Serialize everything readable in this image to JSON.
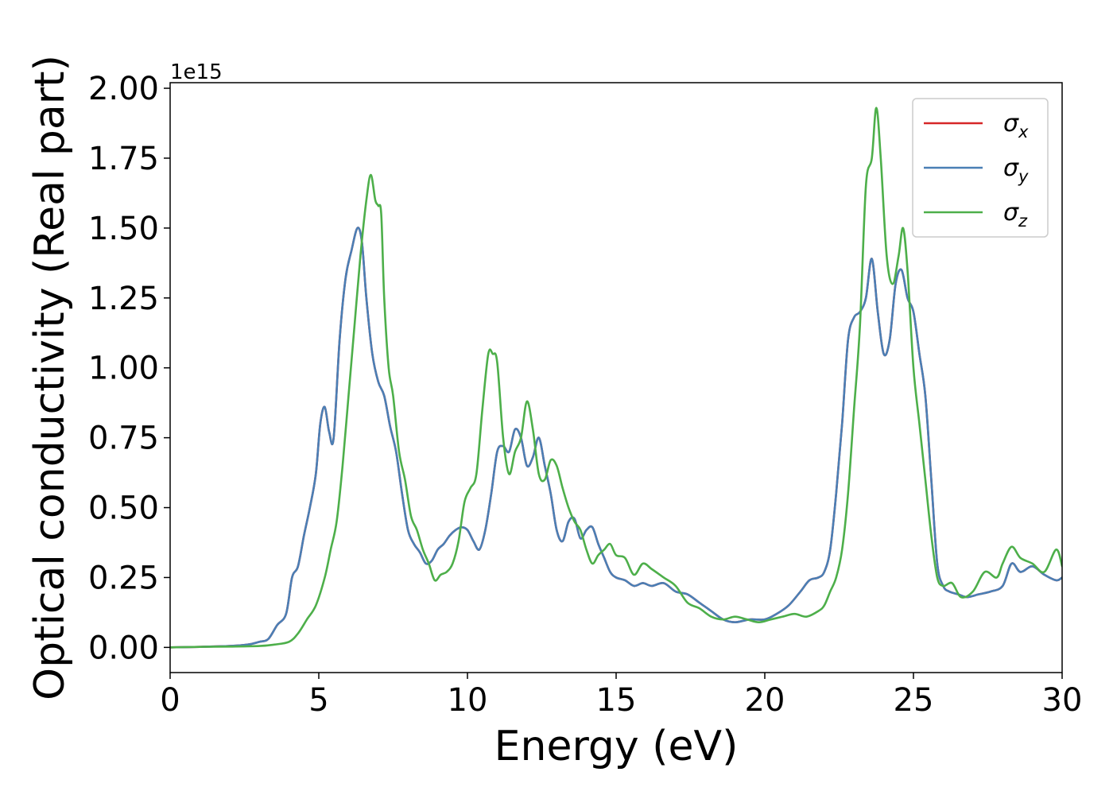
{
  "chart_data": {
    "type": "line",
    "xlabel": "Energy (eV)",
    "ylabel": "Optical conductivity (Real part)",
    "y_offset_label": "1e15",
    "y_scale_factor": 1000000000000000.0,
    "xlim": [
      0,
      30
    ],
    "ylim": [
      -0.09,
      2.02
    ],
    "x_ticks": [
      0,
      5,
      10,
      15,
      20,
      25,
      30
    ],
    "x_tick_labels": [
      "0",
      "5",
      "10",
      "15",
      "20",
      "25",
      "30"
    ],
    "y_ticks": [
      0.0,
      0.25,
      0.5,
      0.75,
      1.0,
      1.25,
      1.5,
      1.75,
      2.0
    ],
    "y_tick_labels": [
      "0.00",
      "0.25",
      "0.50",
      "0.75",
      "1.00",
      "1.25",
      "1.50",
      "1.75",
      "2.00"
    ],
    "grid": false,
    "legend_position": "top-right",
    "series": [
      {
        "name": "σx",
        "legend_symbol": "σ",
        "legend_subscript": "x",
        "color": "#d62728",
        "x": [
          0,
          1,
          2,
          2.6,
          3,
          3.3,
          3.6,
          3.9,
          4.1,
          4.3,
          4.5,
          4.7,
          4.9,
          5.05,
          5.2,
          5.35,
          5.5,
          5.7,
          5.9,
          6.1,
          6.3,
          6.45,
          6.6,
          6.8,
          7.0,
          7.2,
          7.4,
          7.6,
          7.8,
          8.0,
          8.2,
          8.4,
          8.6,
          8.8,
          9.0,
          9.2,
          9.4,
          9.6,
          9.8,
          10.0,
          10.2,
          10.4,
          10.6,
          10.8,
          11.0,
          11.2,
          11.4,
          11.6,
          11.8,
          12.0,
          12.2,
          12.4,
          12.6,
          12.8,
          13.0,
          13.2,
          13.4,
          13.6,
          13.8,
          14.0,
          14.2,
          14.4,
          14.6,
          14.8,
          15.0,
          15.3,
          15.6,
          15.9,
          16.2,
          16.6,
          17.0,
          17.4,
          17.8,
          18.2,
          18.6,
          19.0,
          19.5,
          20.0,
          20.4,
          20.8,
          21.2,
          21.5,
          21.8,
          22.0,
          22.2,
          22.4,
          22.6,
          22.8,
          23.0,
          23.2,
          23.4,
          23.6,
          23.8,
          24.0,
          24.2,
          24.4,
          24.6,
          24.8,
          25.0,
          25.2,
          25.4,
          25.6,
          25.8,
          26.0,
          26.2,
          26.5,
          26.8,
          27.2,
          27.6,
          28.0,
          28.3,
          28.6,
          29.0,
          29.4,
          29.8,
          30.0
        ],
        "values": [
          0,
          0.002,
          0.005,
          0.01,
          0.02,
          0.03,
          0.08,
          0.12,
          0.25,
          0.29,
          0.4,
          0.5,
          0.62,
          0.8,
          0.86,
          0.77,
          0.75,
          1.1,
          1.32,
          1.42,
          1.5,
          1.45,
          1.25,
          1.05,
          0.95,
          0.9,
          0.79,
          0.7,
          0.55,
          0.42,
          0.37,
          0.34,
          0.3,
          0.31,
          0.35,
          0.37,
          0.4,
          0.42,
          0.43,
          0.42,
          0.38,
          0.35,
          0.42,
          0.55,
          0.7,
          0.72,
          0.7,
          0.78,
          0.75,
          0.65,
          0.68,
          0.75,
          0.65,
          0.55,
          0.42,
          0.38,
          0.45,
          0.46,
          0.39,
          0.42,
          0.43,
          0.37,
          0.32,
          0.27,
          0.25,
          0.24,
          0.22,
          0.23,
          0.22,
          0.23,
          0.2,
          0.19,
          0.16,
          0.13,
          0.1,
          0.09,
          0.1,
          0.1,
          0.12,
          0.15,
          0.2,
          0.24,
          0.25,
          0.27,
          0.35,
          0.55,
          0.8,
          1.1,
          1.18,
          1.2,
          1.25,
          1.39,
          1.2,
          1.05,
          1.1,
          1.3,
          1.35,
          1.25,
          1.2,
          1.05,
          0.9,
          0.6,
          0.3,
          0.22,
          0.2,
          0.19,
          0.18,
          0.19,
          0.2,
          0.22,
          0.3,
          0.27,
          0.29,
          0.26,
          0.24,
          0.25
        ]
      },
      {
        "name": "σy",
        "legend_symbol": "σ",
        "legend_subscript": "y",
        "color": "#4a7fb5",
        "x": [
          0,
          1,
          2,
          2.6,
          3,
          3.3,
          3.6,
          3.9,
          4.1,
          4.3,
          4.5,
          4.7,
          4.9,
          5.05,
          5.2,
          5.35,
          5.5,
          5.7,
          5.9,
          6.1,
          6.3,
          6.45,
          6.6,
          6.8,
          7.0,
          7.2,
          7.4,
          7.6,
          7.8,
          8.0,
          8.2,
          8.4,
          8.6,
          8.8,
          9.0,
          9.2,
          9.4,
          9.6,
          9.8,
          10.0,
          10.2,
          10.4,
          10.6,
          10.8,
          11.0,
          11.2,
          11.4,
          11.6,
          11.8,
          12.0,
          12.2,
          12.4,
          12.6,
          12.8,
          13.0,
          13.2,
          13.4,
          13.6,
          13.8,
          14.0,
          14.2,
          14.4,
          14.6,
          14.8,
          15.0,
          15.3,
          15.6,
          15.9,
          16.2,
          16.6,
          17.0,
          17.4,
          17.8,
          18.2,
          18.6,
          19.0,
          19.5,
          20.0,
          20.4,
          20.8,
          21.2,
          21.5,
          21.8,
          22.0,
          22.2,
          22.4,
          22.6,
          22.8,
          23.0,
          23.2,
          23.4,
          23.6,
          23.8,
          24.0,
          24.2,
          24.4,
          24.6,
          24.8,
          25.0,
          25.2,
          25.4,
          25.6,
          25.8,
          26.0,
          26.2,
          26.5,
          26.8,
          27.2,
          27.6,
          28.0,
          28.3,
          28.6,
          29.0,
          29.4,
          29.8,
          30.0
        ],
        "values": [
          0,
          0.002,
          0.005,
          0.01,
          0.02,
          0.03,
          0.08,
          0.12,
          0.25,
          0.29,
          0.4,
          0.5,
          0.62,
          0.8,
          0.86,
          0.77,
          0.75,
          1.1,
          1.32,
          1.42,
          1.5,
          1.45,
          1.25,
          1.05,
          0.95,
          0.9,
          0.79,
          0.7,
          0.55,
          0.42,
          0.37,
          0.34,
          0.3,
          0.31,
          0.35,
          0.37,
          0.4,
          0.42,
          0.43,
          0.42,
          0.38,
          0.35,
          0.42,
          0.55,
          0.7,
          0.72,
          0.7,
          0.78,
          0.75,
          0.65,
          0.68,
          0.75,
          0.65,
          0.55,
          0.42,
          0.38,
          0.45,
          0.46,
          0.39,
          0.42,
          0.43,
          0.37,
          0.32,
          0.27,
          0.25,
          0.24,
          0.22,
          0.23,
          0.22,
          0.23,
          0.2,
          0.19,
          0.16,
          0.13,
          0.1,
          0.09,
          0.1,
          0.1,
          0.12,
          0.15,
          0.2,
          0.24,
          0.25,
          0.27,
          0.35,
          0.55,
          0.8,
          1.1,
          1.18,
          1.2,
          1.25,
          1.39,
          1.2,
          1.05,
          1.1,
          1.3,
          1.35,
          1.25,
          1.2,
          1.05,
          0.9,
          0.6,
          0.3,
          0.22,
          0.2,
          0.19,
          0.18,
          0.19,
          0.2,
          0.22,
          0.3,
          0.27,
          0.29,
          0.26,
          0.24,
          0.25
        ]
      },
      {
        "name": "σz",
        "legend_symbol": "σ",
        "legend_subscript": "z",
        "color": "#4daf4a",
        "x": [
          0,
          1,
          2,
          3,
          3.5,
          4.0,
          4.3,
          4.6,
          4.9,
          5.2,
          5.4,
          5.6,
          5.8,
          6.0,
          6.2,
          6.4,
          6.6,
          6.75,
          6.9,
          7.0,
          7.1,
          7.2,
          7.35,
          7.5,
          7.7,
          7.9,
          8.1,
          8.3,
          8.5,
          8.7,
          8.9,
          9.1,
          9.3,
          9.5,
          9.7,
          9.9,
          10.1,
          10.3,
          10.5,
          10.7,
          10.85,
          11.0,
          11.2,
          11.4,
          11.6,
          11.8,
          12.0,
          12.2,
          12.4,
          12.6,
          12.8,
          13.0,
          13.2,
          13.4,
          13.6,
          13.8,
          14.0,
          14.2,
          14.4,
          14.6,
          14.8,
          15.0,
          15.3,
          15.6,
          15.9,
          16.2,
          16.6,
          17.0,
          17.4,
          17.8,
          18.2,
          18.6,
          19.0,
          19.4,
          19.8,
          20.2,
          20.6,
          21.0,
          21.4,
          21.8,
          22.0,
          22.2,
          22.4,
          22.6,
          22.8,
          23.0,
          23.2,
          23.4,
          23.6,
          23.75,
          23.9,
          24.1,
          24.3,
          24.5,
          24.65,
          24.8,
          25.0,
          25.2,
          25.4,
          25.6,
          25.8,
          26.0,
          26.3,
          26.6,
          27.0,
          27.4,
          27.8,
          28.0,
          28.3,
          28.6,
          29.0,
          29.4,
          29.8,
          30.0
        ],
        "values": [
          0,
          0.002,
          0.003,
          0.005,
          0.01,
          0.02,
          0.05,
          0.1,
          0.15,
          0.25,
          0.35,
          0.45,
          0.65,
          0.9,
          1.15,
          1.4,
          1.6,
          1.69,
          1.6,
          1.58,
          1.55,
          1.25,
          1.0,
          0.9,
          0.7,
          0.6,
          0.47,
          0.42,
          0.35,
          0.3,
          0.24,
          0.26,
          0.27,
          0.3,
          0.38,
          0.52,
          0.57,
          0.62,
          0.85,
          1.05,
          1.05,
          1.02,
          0.75,
          0.62,
          0.7,
          0.75,
          0.88,
          0.78,
          0.62,
          0.6,
          0.67,
          0.65,
          0.57,
          0.5,
          0.45,
          0.42,
          0.35,
          0.3,
          0.33,
          0.35,
          0.37,
          0.33,
          0.32,
          0.26,
          0.3,
          0.28,
          0.25,
          0.22,
          0.16,
          0.14,
          0.11,
          0.1,
          0.11,
          0.1,
          0.09,
          0.1,
          0.11,
          0.12,
          0.11,
          0.13,
          0.15,
          0.2,
          0.25,
          0.35,
          0.55,
          0.85,
          1.15,
          1.65,
          1.75,
          1.93,
          1.75,
          1.4,
          1.3,
          1.4,
          1.5,
          1.35,
          1.0,
          0.8,
          0.6,
          0.4,
          0.25,
          0.22,
          0.23,
          0.18,
          0.2,
          0.27,
          0.25,
          0.3,
          0.36,
          0.32,
          0.3,
          0.27,
          0.35,
          0.29
        ]
      }
    ]
  }
}
